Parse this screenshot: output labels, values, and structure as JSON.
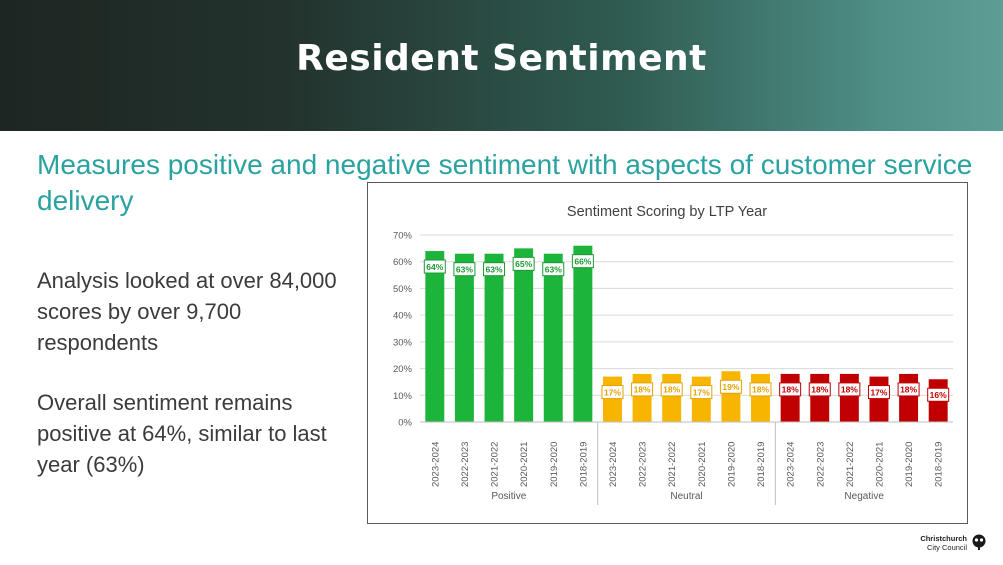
{
  "slide": {
    "title": "Resident Sentiment",
    "subtitle": "Measures positive and negative sentiment with aspects of customer service delivery",
    "paragraph_1": "Analysis looked at over 84,000 scores by over 9,700 respondents",
    "paragraph_2": "Overall sentiment remains positive at 64%, similar to last year (63%)"
  },
  "logo": {
    "line1": "Christchurch",
    "line2": "City Council",
    "icon": "city-council-tree-icon"
  },
  "chart_data": {
    "type": "bar",
    "title": "Sentiment Scoring by LTP Year",
    "xlabel": "",
    "ylabel": "",
    "ylim": [
      0,
      70
    ],
    "yticks": [
      "0%",
      "10%",
      "20%",
      "30%",
      "40%",
      "50%",
      "60%",
      "70%"
    ],
    "grid": true,
    "legend": "none",
    "groups": [
      {
        "name": "Positive",
        "color": "#1db43c",
        "label_color": "#1a9a33",
        "categories": [
          "2023-2024",
          "2022-2023",
          "2021-2022",
          "2020-2021",
          "2019-2020",
          "2018-2019"
        ],
        "values": [
          64,
          63,
          63,
          65,
          63,
          66
        ],
        "labels": [
          "64%",
          "63%",
          "63%",
          "65%",
          "63%",
          "66%"
        ]
      },
      {
        "name": "Neutral",
        "color": "#f7b500",
        "label_color": "#e6a100",
        "categories": [
          "2023-2024",
          "2022-2023",
          "2021-2022",
          "2020-2021",
          "2019-2020",
          "2018-2019"
        ],
        "values": [
          17,
          18,
          18,
          17,
          19,
          18
        ],
        "labels": [
          "17%",
          "18%",
          "18%",
          "17%",
          "19%",
          "18%"
        ]
      },
      {
        "name": "Negative",
        "color": "#c00000",
        "label_color": "#c00000",
        "categories": [
          "2023-2024",
          "2022-2023",
          "2021-2022",
          "2020-2021",
          "2019-2020",
          "2018-2019"
        ],
        "values": [
          18,
          18,
          18,
          17,
          18,
          16
        ],
        "labels": [
          "18%",
          "18%",
          "18%",
          "17%",
          "18%",
          "16%"
        ]
      }
    ]
  }
}
